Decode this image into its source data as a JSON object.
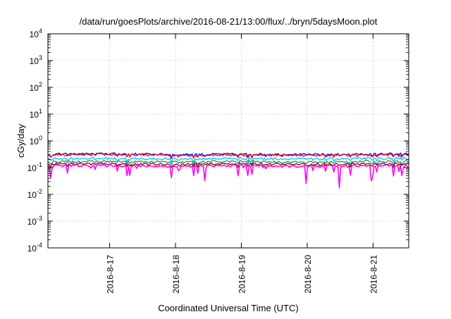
{
  "chart_data": {
    "type": "line",
    "title": "/data/run/goesPlots/archive/2016-08-21/13:00/flux/../bryn/5daysMoon.plot",
    "xlabel": "Coordinated Universal Time (UTC)",
    "ylabel": "cGy/day",
    "yscale": "log",
    "ylim": [
      0.0001,
      10000
    ],
    "xlim": [
      "2016-08-16T01:30",
      "2016-08-21T13:00"
    ],
    "grid": true,
    "legend": "none",
    "y_ticks": [
      {
        "base": "10",
        "exp": "-4"
      },
      {
        "base": "10",
        "exp": "-3"
      },
      {
        "base": "10",
        "exp": "-2"
      },
      {
        "base": "10",
        "exp": "-1"
      },
      {
        "base": "10",
        "exp": "0"
      },
      {
        "base": "10",
        "exp": "1"
      },
      {
        "base": "10",
        "exp": "2"
      },
      {
        "base": "10",
        "exp": "3"
      },
      {
        "base": "10",
        "exp": "4"
      }
    ],
    "x_ticks": [
      "2016-8-17",
      "2016-8-18",
      "2016-8-19",
      "2016-8-20",
      "2016-8-21"
    ],
    "series": [
      {
        "color": "#0000ff",
        "base": 0.32,
        "x": [
          "2016-08-16T01:30",
          "2016-08-17T00:00",
          "2016-08-18T00:00",
          "2016-08-19T00:00",
          "2016-08-20T00:00",
          "2016-08-21T00:00",
          "2016-08-21T13:00"
        ],
        "values": [
          0.32,
          0.33,
          0.31,
          0.32,
          0.31,
          0.32,
          0.33
        ]
      },
      {
        "color": "#ff0000",
        "base": 0.3,
        "x": [
          "2016-08-16T01:30",
          "2016-08-17T00:00",
          "2016-08-18T00:00",
          "2016-08-19T00:00",
          "2016-08-20T00:00",
          "2016-08-21T00:00",
          "2016-08-21T13:00"
        ],
        "values": [
          0.3,
          0.31,
          0.29,
          0.3,
          0.29,
          0.3,
          0.31
        ]
      },
      {
        "color": "#00bfff",
        "base": 0.22,
        "x": [
          "2016-08-16T01:30",
          "2016-08-17T00:00",
          "2016-08-18T00:00",
          "2016-08-19T00:00",
          "2016-08-20T00:00",
          "2016-08-21T00:00",
          "2016-08-21T13:00"
        ],
        "values": [
          0.22,
          0.22,
          0.21,
          0.22,
          0.21,
          0.22,
          0.22
        ]
      },
      {
        "color": "#2e8b57",
        "base": 0.17,
        "x": [
          "2016-08-16T01:30",
          "2016-08-17T00:00",
          "2016-08-18T00:00",
          "2016-08-19T00:00",
          "2016-08-20T00:00",
          "2016-08-21T00:00",
          "2016-08-21T13:00"
        ],
        "values": [
          0.17,
          0.17,
          0.16,
          0.17,
          0.16,
          0.17,
          0.17
        ]
      },
      {
        "color": "#8b0000",
        "base": 0.14,
        "x": [
          "2016-08-16T01:30",
          "2016-08-17T00:00",
          "2016-08-18T00:00",
          "2016-08-19T00:00",
          "2016-08-20T00:00",
          "2016-08-21T00:00",
          "2016-08-21T13:00"
        ],
        "values": [
          0.14,
          0.14,
          0.13,
          0.14,
          0.13,
          0.14,
          0.14
        ]
      },
      {
        "color": "#ff00ff",
        "base": 0.12,
        "x": [
          "2016-08-16T01:30",
          "2016-08-17T00:00",
          "2016-08-18T00:00",
          "2016-08-19T00:00",
          "2016-08-20T00:00",
          "2016-08-21T00:00",
          "2016-08-21T13:00"
        ],
        "values": [
          0.12,
          0.12,
          0.11,
          0.12,
          0.11,
          0.12,
          0.12
        ]
      }
    ]
  }
}
